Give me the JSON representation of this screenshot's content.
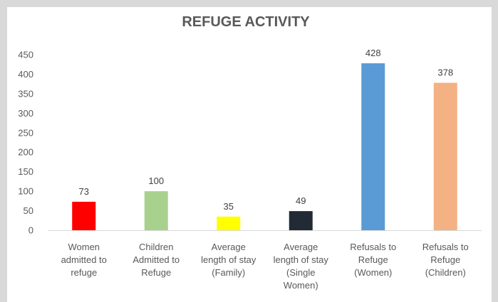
{
  "chart_data": {
    "type": "bar",
    "title": "REFUGE ACTIVITY",
    "categories": [
      [
        "Women",
        "admitted to",
        "refuge"
      ],
      [
        "Children",
        "Admitted to",
        "Refuge"
      ],
      [
        "Average",
        "length of stay",
        "(Family)"
      ],
      [
        "Average",
        "length of stay",
        "(Single",
        "Women)"
      ],
      [
        "Refusals to",
        "Refuge",
        "(Women)"
      ],
      [
        "Refusals to",
        "Refuge",
        "(Children)"
      ]
    ],
    "values": [
      73,
      100,
      35,
      49,
      428,
      378
    ],
    "data_labels": [
      "73",
      "100",
      "35",
      "49",
      "428",
      "378"
    ],
    "colors": [
      "#ff0000",
      "#a9d18e",
      "#ffff00",
      "#222a35",
      "#5b9bd5",
      "#f4b183"
    ],
    "ylim": [
      0,
      450
    ],
    "yticks": [
      0,
      50,
      100,
      150,
      200,
      250,
      300,
      350,
      400,
      450
    ],
    "grid": false,
    "xlabel": "",
    "ylabel": ""
  }
}
